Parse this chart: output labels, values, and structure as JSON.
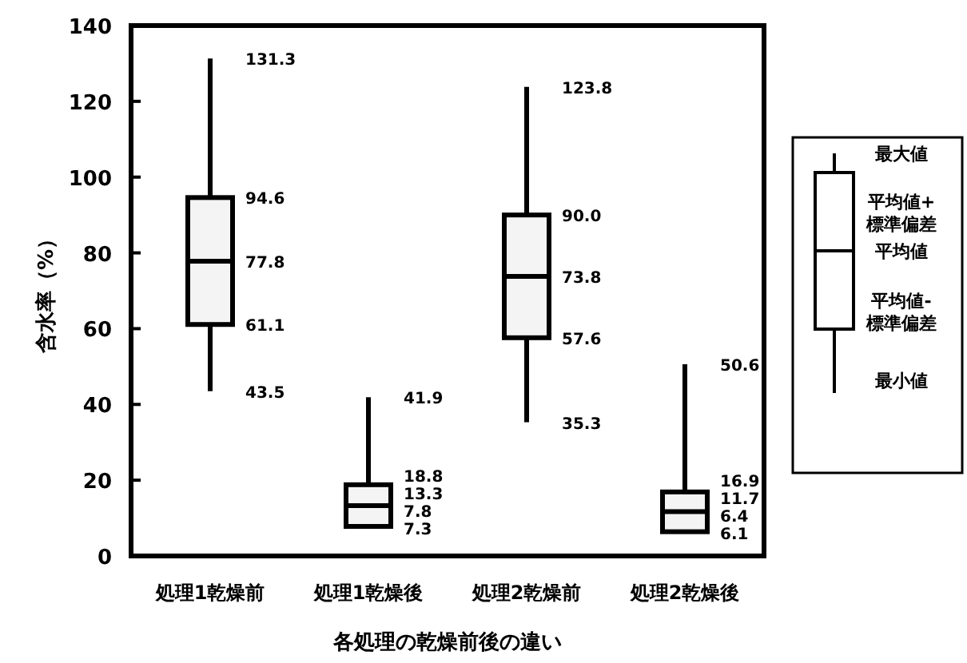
{
  "chart_data": {
    "type": "box",
    "xlabel": "各処理の乾燥前後の違い",
    "ylabel": "含水率（%）",
    "categories": [
      "処理1乾燥前",
      "処理1乾燥後",
      "処理2乾燥前",
      "処理2乾燥後"
    ],
    "boxes": [
      {
        "low": 43.5,
        "q1": 61.1,
        "median": 77.8,
        "q3": 94.6,
        "high": 131.3
      },
      {
        "low": 7.3,
        "q1": 7.8,
        "median": 13.3,
        "q3": 18.8,
        "high": 41.9
      },
      {
        "low": 35.3,
        "q1": 57.6,
        "median": 73.8,
        "q3": 90.0,
        "high": 123.8
      },
      {
        "low": 6.1,
        "q1": 6.4,
        "median": 11.7,
        "q3": 16.9,
        "high": 50.6
      }
    ],
    "ylim": [
      0,
      140
    ],
    "yticks": [
      0,
      20,
      40,
      60,
      80,
      100,
      120,
      140
    ],
    "grid": false,
    "annotations": [
      "最大値",
      "平均値+標準偏差",
      "平均値",
      "平均値-標準偏差",
      "最小値",
      {
        "text": "131.3",
        "x": "処理1乾燥前",
        "y": 131.3
      },
      {
        "text": "94.6",
        "x": "処理1乾燥前",
        "y": 94.6
      },
      {
        "text": "77.8",
        "x": "処理1乾燥前",
        "y": 77.8
      },
      {
        "text": "61.1",
        "x": "処理1乾燥前",
        "y": 61.1
      },
      {
        "text": "43.5",
        "x": "処理1乾燥前",
        "y": 43.5
      },
      {
        "text": "41.9",
        "x": "処理1乾燥後",
        "y": 41.9
      },
      {
        "text": "18.8",
        "x": "処理1乾燥後",
        "y": 18.8
      },
      {
        "text": "13.3",
        "x": "処理1乾燥後",
        "y": 13.3
      },
      {
        "text": "7.8",
        "x": "処理1乾燥後",
        "y": 7.8
      },
      {
        "text": "7.3",
        "x": "処理1乾燥後",
        "y": 7.3
      },
      {
        "text": "123.8",
        "x": "処理2乾燥前",
        "y": 123.8
      },
      {
        "text": "90.0",
        "x": "処理2乾燥前",
        "y": 90.0
      },
      {
        "text": "73.8",
        "x": "処理2乾燥前",
        "y": 73.8
      },
      {
        "text": "57.6",
        "x": "処理2乾燥前",
        "y": 57.6
      },
      {
        "text": "35.3",
        "x": "処理2乾燥前",
        "y": 35.3
      },
      {
        "text": "50.6",
        "x": "処理2乾燥後",
        "y": 50.6
      },
      {
        "text": "16.9",
        "x": "処理2乾燥後",
        "y": 16.9
      },
      {
        "text": "11.7",
        "x": "処理2乾燥後",
        "y": 11.7
      },
      {
        "text": "6.4",
        "x": "処理2乾燥後",
        "y": 6.4
      },
      {
        "text": "6.1",
        "x": "処理2乾燥後",
        "y": 6.1
      }
    ]
  }
}
